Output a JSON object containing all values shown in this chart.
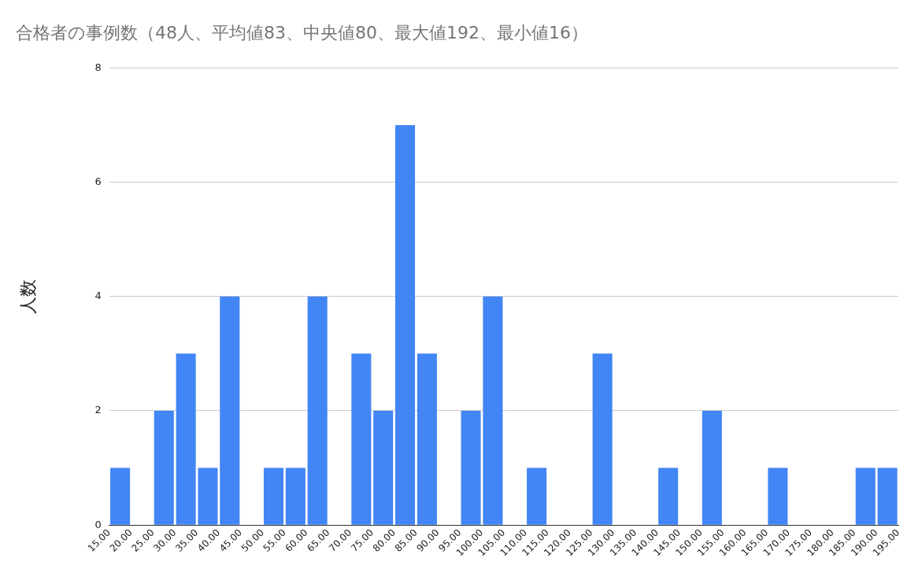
{
  "chart_data": {
    "type": "histogram",
    "title": "合格者の事例数（48人、平均値83、中央値80、最大値192、最小値16）",
    "ylabel": "人数",
    "bins": [
      15,
      20,
      25,
      30,
      35,
      40,
      45,
      50,
      55,
      60,
      65,
      70,
      75,
      80,
      85,
      90,
      95,
      100,
      105,
      110,
      115,
      120,
      125,
      130,
      135,
      140,
      145,
      150,
      155,
      160,
      165,
      170,
      175,
      180,
      185,
      190,
      195
    ],
    "values": [
      1,
      0,
      2,
      3,
      1,
      4,
      0,
      1,
      1,
      4,
      0,
      3,
      2,
      7,
      3,
      0,
      2,
      4,
      0,
      1,
      0,
      0,
      3,
      0,
      0,
      1,
      0,
      2,
      0,
      0,
      1,
      0,
      0,
      0,
      1,
      1
    ],
    "color": "#4285f4",
    "xlim": [
      15,
      195
    ],
    "xticks": [
      {
        "value": 15,
        "label": "15.00"
      },
      {
        "value": 20,
        "label": "20.00"
      },
      {
        "value": 25,
        "label": "25.00"
      },
      {
        "value": 30,
        "label": "30.00"
      },
      {
        "value": 35,
        "label": "35.00"
      },
      {
        "value": 40,
        "label": "40.00"
      },
      {
        "value": 45,
        "label": "45.00"
      },
      {
        "value": 50,
        "label": "50.00"
      },
      {
        "value": 55,
        "label": "55.00"
      },
      {
        "value": 60,
        "label": "60.00"
      },
      {
        "value": 65,
        "label": "65.00"
      },
      {
        "value": 70,
        "label": "70.00"
      },
      {
        "value": 75,
        "label": "75.00"
      },
      {
        "value": 80,
        "label": "80.00"
      },
      {
        "value": 85,
        "label": "85.00"
      },
      {
        "value": 90,
        "label": "90.00"
      },
      {
        "value": 95,
        "label": "95.00"
      },
      {
        "value": 100,
        "label": "100.00"
      },
      {
        "value": 105,
        "label": "105.00"
      },
      {
        "value": 110,
        "label": "110.00"
      },
      {
        "value": 115,
        "label": "115.00"
      },
      {
        "value": 120,
        "label": "120.00"
      },
      {
        "value": 125,
        "label": "125.00"
      },
      {
        "value": 130,
        "label": "130.00"
      },
      {
        "value": 135,
        "label": "135.00"
      },
      {
        "value": 140,
        "label": "140.00"
      },
      {
        "value": 145,
        "label": "145.00"
      },
      {
        "value": 150,
        "label": "150.00"
      },
      {
        "value": 155,
        "label": "155.00"
      },
      {
        "value": 160,
        "label": "160.00"
      },
      {
        "value": 165,
        "label": "165.00"
      },
      {
        "value": 170,
        "label": "170.00"
      },
      {
        "value": 175,
        "label": "175.00"
      },
      {
        "value": 180,
        "label": "180.00"
      },
      {
        "value": 185,
        "label": "185.00"
      },
      {
        "value": 190,
        "label": "190.00"
      },
      {
        "value": 195,
        "label": "195.00"
      }
    ],
    "ylim": [
      0,
      8
    ],
    "yticks": [
      0,
      2,
      4,
      6,
      8
    ],
    "grid": "y",
    "legend": false
  }
}
